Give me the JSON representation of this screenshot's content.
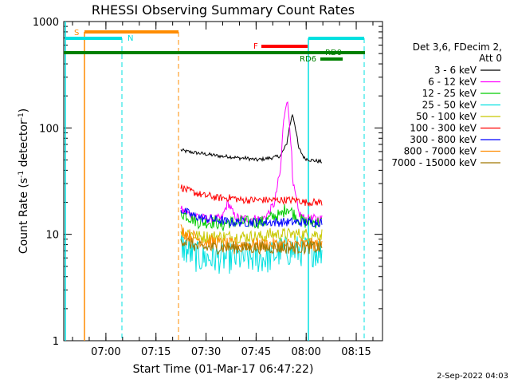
{
  "chart_data": {
    "type": "line",
    "title": "RHESSI Observing Summary Count Rates",
    "xlabel": "Start Time (01-Mar-17 06:47:22)",
    "ylabel_main": "Count Rate (s",
    "ylabel_sup1": "-1",
    "ylabel_mid": " detector",
    "ylabel_sup2": "-1",
    "ylabel_end": ")",
    "yscale": "log",
    "ylim": [
      1,
      1000
    ],
    "y_tick_labels": [
      "1",
      "10",
      "100",
      "1000"
    ],
    "x_tick_labels": [
      "07:00",
      "07:15",
      "07:30",
      "07:45",
      "08:00",
      "08:15"
    ],
    "legend_header": [
      "Det 3,6, FDecim 2,",
      "Att 0"
    ],
    "series": [
      {
        "name": "3 - 6 keV",
        "color": "#000000",
        "base": [
          62,
          60,
          59,
          58,
          57,
          56,
          55,
          54,
          54,
          53,
          52,
          52,
          51,
          50,
          51,
          52,
          53,
          55,
          70,
          135,
          65,
          52,
          50,
          49,
          48
        ]
      },
      {
        "name": "6 - 12 keV",
        "color": "#ff00ff",
        "base": [
          17,
          16,
          15,
          15,
          14,
          14,
          14,
          14,
          20,
          15,
          14,
          14,
          14,
          14,
          14,
          16,
          20,
          40,
          190,
          30,
          16,
          14,
          14,
          14,
          14
        ]
      },
      {
        "name": "12 - 25 keV",
        "color": "#00cc00",
        "base": [
          16,
          15,
          14,
          13,
          13,
          13,
          13,
          12,
          13,
          13,
          13,
          13,
          13,
          13,
          13,
          14,
          15,
          15,
          18,
          16,
          14,
          13,
          13,
          13,
          13
        ]
      },
      {
        "name": "25 - 50 keV",
        "color": "#00e0e0",
        "base": [
          8,
          7,
          6.5,
          6,
          6,
          6,
          6,
          6,
          6,
          6,
          6,
          6,
          6,
          6,
          6,
          6,
          6.5,
          7,
          7,
          7,
          7,
          7,
          7,
          7,
          7
        ]
      },
      {
        "name": "50 - 100 keV",
        "color": "#c8c800",
        "base": [
          11,
          10.5,
          10,
          9.5,
          9.5,
          9.5,
          9.5,
          9.5,
          9.5,
          9.5,
          9.5,
          9.5,
          9.5,
          9.5,
          9.5,
          10,
          10,
          10,
          10,
          10,
          10,
          10,
          10,
          10,
          10
        ]
      },
      {
        "name": "100 - 300 keV",
        "color": "#ff0000",
        "base": [
          28,
          26,
          25,
          24,
          23,
          23,
          22,
          22,
          22,
          22,
          21,
          21,
          21,
          21,
          21,
          21,
          21,
          21,
          21,
          21,
          21,
          20,
          20,
          20,
          20
        ]
      },
      {
        "name": "300 - 800 keV",
        "color": "#0000ff",
        "base": [
          17,
          16,
          15,
          14.5,
          14,
          14,
          13.5,
          13.5,
          13,
          13,
          13,
          13,
          13,
          13,
          13,
          13,
          13,
          13,
          13,
          13,
          13,
          13,
          13,
          13,
          13
        ]
      },
      {
        "name": "800 - 7000 keV",
        "color": "#ff8c00",
        "base": [
          11,
          10,
          9.5,
          9,
          8.5,
          8.5,
          8.5,
          8,
          8,
          8,
          8,
          8,
          8,
          8,
          8,
          8,
          8,
          8,
          8,
          8,
          8,
          8,
          8,
          8,
          8
        ]
      },
      {
        "name": "7000 - 15000 keV",
        "color": "#a07800",
        "base": [
          9,
          8.5,
          8,
          7.5,
          7.5,
          7.5,
          7.5,
          7.5,
          7.5,
          7.5,
          7.5,
          7.5,
          7.5,
          7.5,
          7.5,
          7.5,
          7.5,
          7.5,
          7.5,
          7.5,
          7.5,
          7.5,
          7.5,
          7.5,
          7.5
        ]
      }
    ],
    "annotations": [
      {
        "label": "S",
        "color": "#ff8c00"
      },
      {
        "label": "N",
        "color": "#00e0e0"
      },
      {
        "label": "F",
        "color": "#ff0000"
      },
      {
        "label": "RD0",
        "color": "#008000"
      },
      {
        "label": "RD6",
        "color": "#008000"
      }
    ],
    "vertical_line_colors": {
      "orange": "#ff8c00",
      "cyan": "#00e0e0"
    },
    "grid": false,
    "legend_position": "right"
  },
  "footer": {
    "date_stamp": "2-Sep-2022 04:03"
  }
}
